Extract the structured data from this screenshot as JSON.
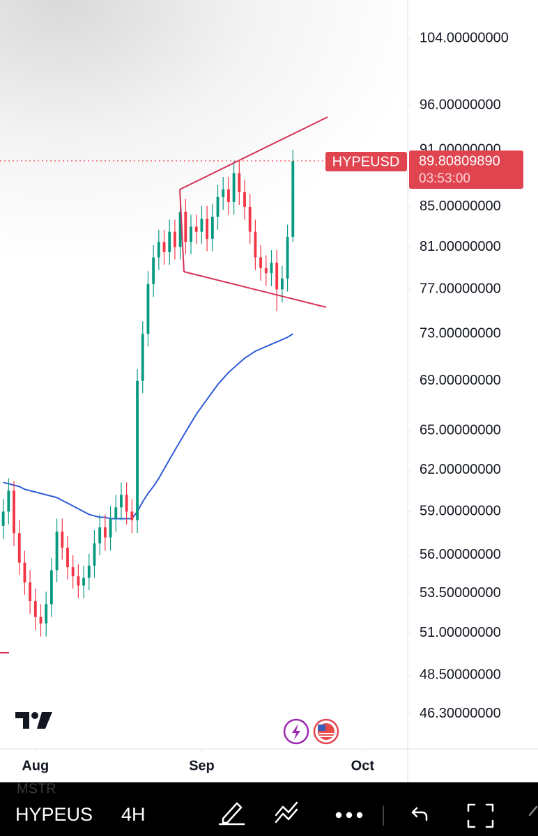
{
  "chart_data": {
    "type": "candlestick",
    "symbol": "HYPEUSD",
    "countdown": "03:53:00",
    "last_price": {
      "value": 89.8080989,
      "label": "89.80809890"
    },
    "log_scale": true,
    "up_color": "#089981",
    "down_color": "#f23645",
    "price_line_color": "#f23645",
    "ylim": [
      44.4,
      108.9
    ],
    "yticks": [
      {
        "value": 104,
        "label": "104.00000000"
      },
      {
        "value": 96,
        "label": "96.00000000"
      },
      {
        "value": 91,
        "label": "91.00000000"
      },
      {
        "value": 85,
        "label": "85.00000000"
      },
      {
        "value": 81,
        "label": "81.00000000"
      },
      {
        "value": 77,
        "label": "77.00000000"
      },
      {
        "value": 73,
        "label": "73.00000000"
      },
      {
        "value": 69,
        "label": "69.00000000"
      },
      {
        "value": 65,
        "label": "65.00000000"
      },
      {
        "value": 62,
        "label": "62.00000000"
      },
      {
        "value": 59,
        "label": "59.00000000"
      },
      {
        "value": 56,
        "label": "56.00000000"
      },
      {
        "value": 53.5,
        "label": "53.50000000"
      },
      {
        "value": 51,
        "label": "51.00000000"
      },
      {
        "value": 48.5,
        "label": "48.50000000"
      },
      {
        "value": 46.3,
        "label": "46.30000000"
      }
    ],
    "xlim": [
      -6.6,
      69.4
    ],
    "xticks": [
      {
        "value": 0,
        "label": "Aug"
      },
      {
        "value": 31,
        "label": "Sep"
      },
      {
        "value": 61,
        "label": "Oct"
      }
    ],
    "x": [
      -6,
      -5,
      -4,
      -3,
      -2,
      -1,
      0,
      1,
      2,
      3,
      4,
      5,
      6,
      7,
      8,
      9,
      10,
      11,
      12,
      13,
      14,
      15,
      16,
      17,
      18,
      19,
      20,
      21,
      22,
      23,
      24,
      25,
      26,
      27,
      28,
      29,
      30,
      31,
      32,
      33,
      34,
      35,
      36,
      37,
      38,
      39,
      40,
      41,
      42,
      43,
      44,
      45,
      46,
      47,
      48
    ],
    "open": [
      58.0,
      59.0,
      60.5,
      57.5,
      55.5,
      54.2,
      53.0,
      52.0,
      51.6,
      52.8,
      55.0,
      57.6,
      56.5,
      55.2,
      54.6,
      54.0,
      54.5,
      55.3,
      56.8,
      57.9,
      57.2,
      58.5,
      59.3,
      60.2,
      59.0,
      58.4,
      69.0,
      73.0,
      77.5,
      80.0,
      81.5,
      80.5,
      82.5,
      81.0,
      84.5,
      81.5,
      83.0,
      82.5,
      83.8,
      81.8,
      84.0,
      86.0,
      86.8,
      85.5,
      88.5,
      86.5,
      85.0,
      82.5,
      80.0,
      79.0,
      78.5,
      79.5,
      77.0,
      78.0,
      82.0
    ],
    "high": [
      59.9,
      61.4,
      61.2,
      58.4,
      56.3,
      55.0,
      53.8,
      52.8,
      53.6,
      55.8,
      58.5,
      58.5,
      57.3,
      56.0,
      55.4,
      55.3,
      56.1,
      57.7,
      58.8,
      58.8,
      59.4,
      60.2,
      61.1,
      61.1,
      59.9,
      70.0,
      74.1,
      78.7,
      81.2,
      82.7,
      82.7,
      83.7,
      83.7,
      85.8,
      85.8,
      84.2,
      84.2,
      85.1,
      85.1,
      85.3,
      87.3,
      88.1,
      88.1,
      89.8,
      89.8,
      87.8,
      86.3,
      83.7,
      81.2,
      80.2,
      80.7,
      80.7,
      79.2,
      83.2,
      91.0
    ],
    "low": [
      57.1,
      58.1,
      56.6,
      54.7,
      53.4,
      52.2,
      51.2,
      50.8,
      50.8,
      52.0,
      54.2,
      55.7,
      54.4,
      53.8,
      53.2,
      53.2,
      53.7,
      54.5,
      56.0,
      56.3,
      56.3,
      57.6,
      58.4,
      58.1,
      57.5,
      57.5,
      68.0,
      71.9,
      76.3,
      78.8,
      79.3,
      79.3,
      79.8,
      79.8,
      80.3,
      80.3,
      81.3,
      81.3,
      80.6,
      80.6,
      82.7,
      84.7,
      84.2,
      84.2,
      85.2,
      83.7,
      81.3,
      78.8,
      77.8,
      77.3,
      77.3,
      75.0,
      75.8,
      76.8,
      81.5
    ],
    "close": [
      59.0,
      60.5,
      57.5,
      55.5,
      54.2,
      53.0,
      52.0,
      51.6,
      52.8,
      55.0,
      57.6,
      56.5,
      55.2,
      54.6,
      54.0,
      54.5,
      55.3,
      56.8,
      57.9,
      57.2,
      58.5,
      59.3,
      60.2,
      59.0,
      58.4,
      69.0,
      73.0,
      77.5,
      80.0,
      81.5,
      80.5,
      82.5,
      81.0,
      84.5,
      81.5,
      83.0,
      82.5,
      83.8,
      81.8,
      84.0,
      86.0,
      86.8,
      85.5,
      88.5,
      86.5,
      85.0,
      82.5,
      80.0,
      79.0,
      78.5,
      79.5,
      77.0,
      78.0,
      82.0,
      89.8
    ],
    "moving_average": {
      "color": "#2e5bd8",
      "values": [
        61.1,
        61.0,
        60.9,
        60.8,
        60.6,
        60.5,
        60.4,
        60.3,
        60.2,
        60.1,
        60.0,
        59.8,
        59.6,
        59.4,
        59.2,
        59.0,
        58.8,
        58.7,
        58.6,
        58.6,
        58.5,
        58.5,
        58.5,
        58.5,
        58.5,
        59.0,
        59.7,
        60.3,
        60.8,
        61.4,
        62.1,
        62.8,
        63.5,
        64.2,
        64.9,
        65.6,
        66.3,
        66.9,
        67.5,
        68.1,
        68.7,
        69.2,
        69.7,
        70.1,
        70.5,
        70.9,
        71.2,
        71.5,
        71.7,
        71.9,
        72.1,
        72.3,
        72.5,
        72.7,
        73.0
      ]
    }
  },
  "toolbar": {
    "hidden_symbol": "MSTR",
    "symbol": "HYPEUS",
    "interval": "4H"
  }
}
